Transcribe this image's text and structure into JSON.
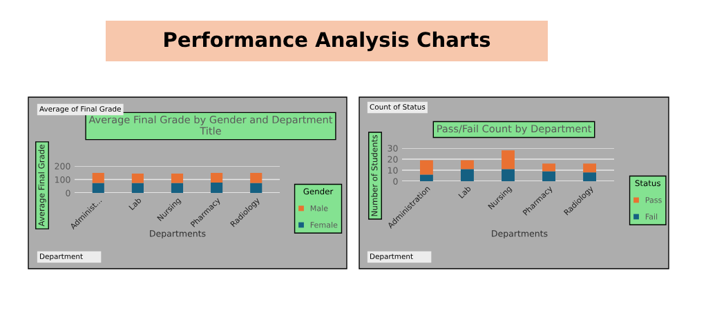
{
  "chart_data": [
    {
      "type": "other",
      "title": "Performance Analysis Charts"
    },
    {
      "type": "bar",
      "stacked": true,
      "title": "Average Final Grade by Gender and Department Title",
      "xlabel": "Departments",
      "ylabel": "Average Final Grade",
      "legend_title": "Gender",
      "legend": "right",
      "grid": "y",
      "annotations": [
        "Average of Final Grade",
        "Department"
      ],
      "categories": [
        "Administ...",
        "Lab",
        "Nursing",
        "Pharmacy",
        "Radiology"
      ],
      "ylim": [
        0,
        200
      ],
      "yticks": [
        0,
        100,
        200
      ],
      "series": [
        {
          "name": "Female",
          "color": "#156082",
          "values": [
            74,
            74,
            74,
            77,
            74
          ]
        },
        {
          "name": "Male",
          "color": "#e97132",
          "values": [
            75,
            70,
            70,
            72,
            75
          ]
        }
      ]
    },
    {
      "type": "bar",
      "stacked": true,
      "title": "Pass/Fail Count by Department",
      "xlabel": "Departments",
      "ylabel": "Number of Students",
      "legend_title": "Status",
      "legend": "right",
      "grid": "y",
      "annotations": [
        "Count of Status",
        "Department"
      ],
      "categories": [
        "Administration",
        "Lab",
        "Nursing",
        "Pharmacy",
        "Radiology"
      ],
      "ylim": [
        0,
        30
      ],
      "yticks": [
        0,
        10,
        20,
        30
      ],
      "series": [
        {
          "name": "Fail",
          "color": "#156082",
          "values": [
            6,
            11,
            11,
            9,
            8
          ]
        },
        {
          "name": "Pass",
          "color": "#e97132",
          "values": [
            13,
            8,
            17,
            7,
            8
          ]
        }
      ]
    }
  ]
}
